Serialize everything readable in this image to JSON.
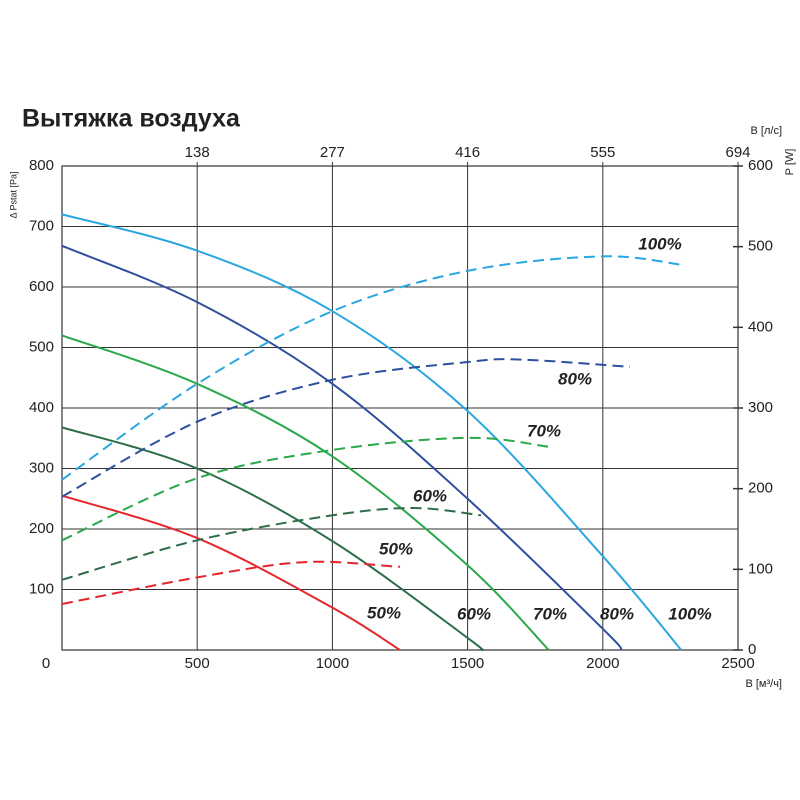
{
  "chart_data": {
    "type": "line",
    "title": "Вытяжка воздуха",
    "ylabel": "Δ Pstat [Pa]",
    "y2label": "P [W]",
    "xlabel": "B [м³/ч]",
    "x2label": "B [л/с]",
    "xlim": [
      0,
      2500
    ],
    "xticks": [
      0,
      500,
      1000,
      1500,
      2000,
      2500
    ],
    "x2ticks": [
      {
        "value": 500,
        "label": "138"
      },
      {
        "value": 1000,
        "label": "277"
      },
      {
        "value": 1500,
        "label": "416"
      },
      {
        "value": 2000,
        "label": "555"
      },
      {
        "value": 2500,
        "label": "694"
      }
    ],
    "ylim": [
      0,
      800
    ],
    "yticks": [
      100,
      200,
      300,
      400,
      500,
      600,
      700,
      800
    ],
    "y2lim": [
      0,
      600
    ],
    "y2ticks": [
      0,
      100,
      200,
      300,
      400,
      500,
      600
    ],
    "grid": true,
    "series": [
      {
        "name": "100%",
        "color": "#2aa7e0",
        "style": "solid",
        "x": [
          0,
          500,
          1000,
          1500,
          2000,
          2290
        ],
        "values": [
          720,
          660,
          560,
          395,
          155,
          0
        ]
      },
      {
        "name": "80%",
        "color": "#2e4f9f",
        "style": "solid",
        "x": [
          0,
          500,
          1000,
          1500,
          2000,
          2070
        ],
        "values": [
          668,
          575,
          440,
          250,
          35,
          0
        ]
      },
      {
        "name": "70%",
        "color": "#2aa84a",
        "style": "solid",
        "x": [
          0,
          500,
          1000,
          1500,
          1800
        ],
        "values": [
          520,
          440,
          320,
          140,
          0
        ]
      },
      {
        "name": "60%",
        "color": "#2d6e4a",
        "style": "solid",
        "x": [
          0,
          500,
          1000,
          1500,
          1550
        ],
        "values": [
          368,
          300,
          180,
          20,
          0
        ]
      },
      {
        "name": "50%",
        "color": "#e4262b",
        "style": "solid",
        "x": [
          0,
          500,
          1000,
          1250
        ],
        "values": [
          255,
          185,
          70,
          0
        ]
      },
      {
        "name": "100%",
        "color": "#2aa7e0",
        "style": "dashed",
        "axis": "y2",
        "x": [
          0,
          500,
          1000,
          1500,
          2000,
          2300
        ],
        "values": [
          211,
          330,
          420,
          470,
          488,
          477
        ]
      },
      {
        "name": "80%",
        "color": "#2e4f9f",
        "style": "dashed",
        "axis": "y2",
        "x": [
          0,
          500,
          1000,
          1500,
          1700,
          2100
        ],
        "values": [
          190,
          283,
          335,
          357,
          360,
          351
        ]
      },
      {
        "name": "70%",
        "color": "#2aa84a",
        "style": "dashed",
        "axis": "y2",
        "x": [
          0,
          500,
          1000,
          1500,
          1800
        ],
        "values": [
          136,
          213,
          248,
          263,
          252
        ]
      },
      {
        "name": "60%",
        "color": "#2d6e4a",
        "style": "dashed",
        "axis": "y2",
        "x": [
          0,
          500,
          1000,
          1300,
          1550
        ],
        "values": [
          87,
          136,
          167,
          176,
          167
        ]
      },
      {
        "name": "50%",
        "color": "#e4262b",
        "style": "dashed",
        "axis": "y2",
        "x": [
          0,
          500,
          900,
          1250
        ],
        "values": [
          57,
          90,
          109,
          103
        ]
      }
    ]
  }
}
